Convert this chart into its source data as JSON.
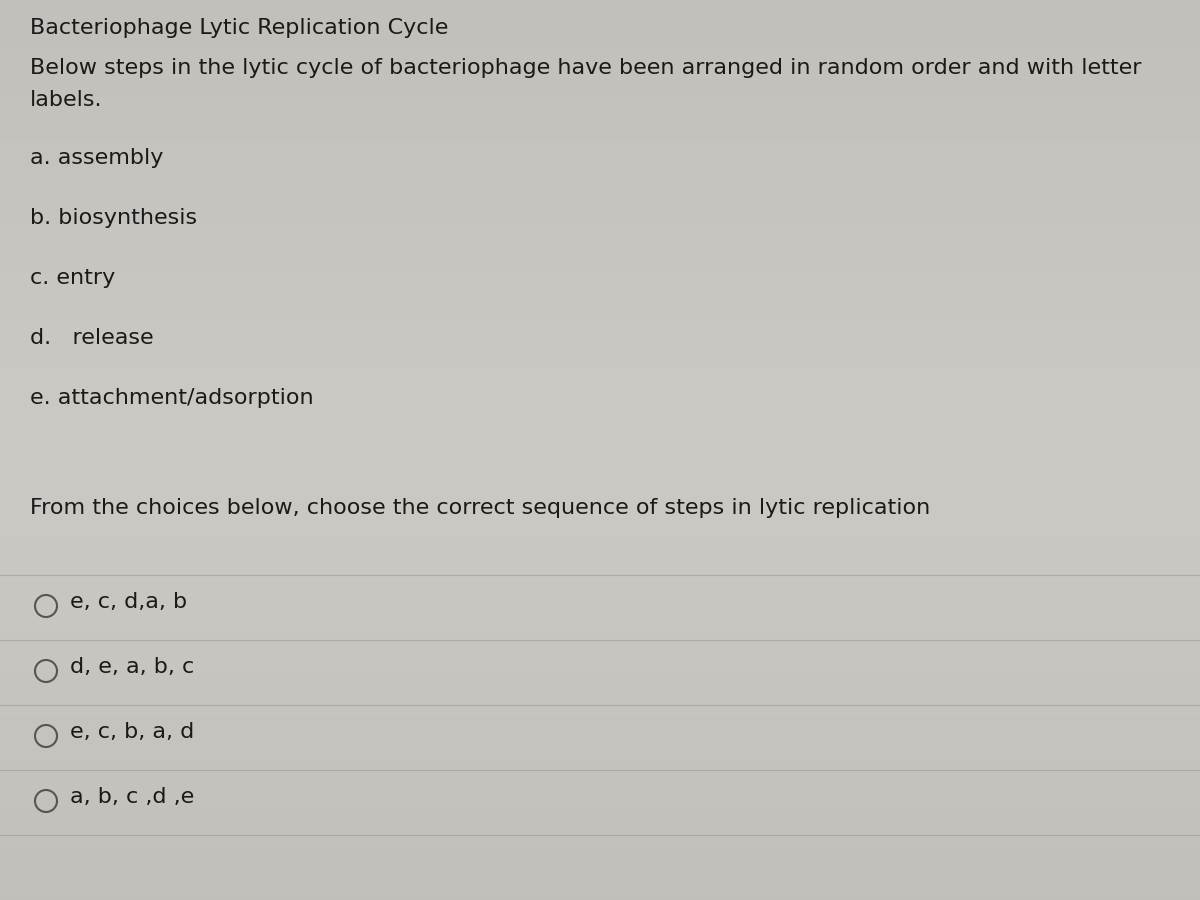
{
  "title": "Bacteriophage Lytic Replication Cycle",
  "subtitle_line1": "Below steps in the lytic cycle of bacteriophage have been arranged in random order and with letter",
  "subtitle_line2": "labels.",
  "steps": [
    "a. assembly",
    "b. biosynthesis",
    "c. entry",
    "d.   release",
    "e. attachment/adsorption"
  ],
  "question": "From the choices below, choose the correct sequence of steps in lytic replication",
  "choices": [
    "e, c, d,a, b",
    "d, e, a, b, c",
    "e, c, b, a, d",
    "a, b, c ,d ,e"
  ],
  "bg_color_top": "#c8c6c0",
  "bg_color_mid": "#d4d2cc",
  "bg_color_bot": "#c0beb8",
  "text_color": "#1a1a1a",
  "line_color": "#aaaaaa",
  "circle_color": "#555555",
  "title_fontsize": 16,
  "body_fontsize": 16,
  "step_fontsize": 16,
  "question_fontsize": 16,
  "choice_fontsize": 16
}
